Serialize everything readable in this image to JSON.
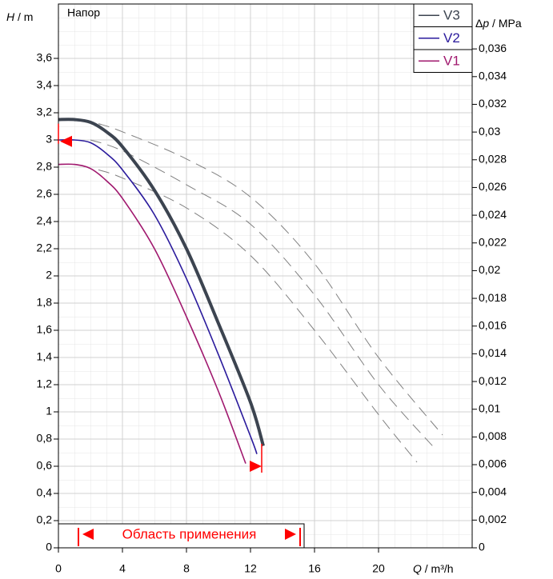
{
  "chart_data": {
    "type": "line",
    "title": "Напор",
    "x_label": {
      "symbol": "Q",
      "unit": " / m³/h"
    },
    "y_label": {
      "symbol": "H",
      "unit": " / m"
    },
    "y2_label": {
      "prefix": "Δ",
      "symbol": "p",
      "unit": " / MPa"
    },
    "xlim": [
      0,
      25.85
    ],
    "xticks": [
      0,
      4,
      8,
      12,
      16,
      20
    ],
    "ylim": [
      0,
      4
    ],
    "yticks": [
      0,
      {
        "value": 0.2,
        "label": "0,2"
      },
      {
        "value": 0.4,
        "label": "0,4"
      },
      {
        "value": 0.6,
        "label": "0,6"
      },
      {
        "value": 0.8,
        "label": "0,8"
      },
      1,
      {
        "value": 1.2,
        "label": "1,2"
      },
      {
        "value": 1.4,
        "label": "1,4"
      },
      {
        "value": 1.6,
        "label": "1,6"
      },
      {
        "value": 1.8,
        "label": "1,8"
      },
      2,
      {
        "value": 2.2,
        "label": "2,2"
      },
      {
        "value": 2.4,
        "label": "2,4"
      },
      {
        "value": 2.6,
        "label": "2,6"
      },
      {
        "value": 2.8,
        "label": "2,8"
      },
      3,
      {
        "value": 3.2,
        "label": "3,2"
      },
      {
        "value": 3.4,
        "label": "3,4"
      },
      {
        "value": 3.6,
        "label": "3,6"
      }
    ],
    "y2lim": [
      0,
      0.03924
    ],
    "y2ticks": [
      0,
      {
        "value": 0.002,
        "label": "0,002"
      },
      {
        "value": 0.004,
        "label": "0,004"
      },
      {
        "value": 0.006,
        "label": "0,006"
      },
      {
        "value": 0.008,
        "label": "0,008"
      },
      {
        "value": 0.01,
        "label": "0,01"
      },
      {
        "value": 0.012,
        "label": "0,012"
      },
      {
        "value": 0.014,
        "label": "0,014"
      },
      {
        "value": 0.016,
        "label": "0,016"
      },
      {
        "value": 0.018,
        "label": "0,018"
      },
      {
        "value": 0.02,
        "label": "0,02"
      },
      {
        "value": 0.022,
        "label": "0,022"
      },
      {
        "value": 0.024,
        "label": "0,024"
      },
      {
        "value": 0.026,
        "label": "0,026"
      },
      {
        "value": 0.028,
        "label": "0,028"
      },
      {
        "value": 0.03,
        "label": "0,03"
      },
      {
        "value": 0.032,
        "label": "0,032"
      },
      {
        "value": 0.034,
        "label": "0,034"
      },
      {
        "value": 0.036,
        "label": "0,036"
      }
    ],
    "grid": true,
    "series": [
      {
        "name": "V3",
        "color": "#3c4450",
        "width": 4,
        "x": [
          0,
          1,
          2,
          3,
          4,
          6,
          8,
          10,
          12,
          12.8
        ],
        "values": [
          3.15,
          3.15,
          3.13,
          3.06,
          2.95,
          2.63,
          2.2,
          1.65,
          1.07,
          0.75
        ]
      },
      {
        "name": "V2",
        "color": "#2a1a9c",
        "width": 1.6,
        "x": [
          0,
          1,
          2,
          3,
          4,
          6,
          8,
          10,
          12,
          12.4
        ],
        "values": [
          3.0,
          3.0,
          2.98,
          2.9,
          2.78,
          2.45,
          1.98,
          1.42,
          0.82,
          0.69
        ]
      },
      {
        "name": "V1",
        "color": "#a0186e",
        "width": 1.6,
        "x": [
          0,
          1,
          2,
          3,
          4,
          6,
          8,
          10,
          11.7
        ],
        "values": [
          2.82,
          2.82,
          2.79,
          2.7,
          2.57,
          2.2,
          1.7,
          1.15,
          0.62
        ]
      }
    ],
    "reference_curves": [
      {
        "color": "#808080",
        "x": [
          2.5,
          4,
          8,
          12,
          16,
          20,
          24
        ],
        "values": [
          3.12,
          3.06,
          2.86,
          2.58,
          2.09,
          1.4,
          0.83
        ]
      },
      {
        "color": "#808080",
        "x": [
          2,
          4,
          8,
          12,
          16,
          20,
          23.6
        ],
        "values": [
          3.0,
          2.92,
          2.67,
          2.38,
          1.86,
          1.2,
          0.72
        ]
      },
      {
        "color": "#808080",
        "x": [
          2.5,
          4,
          8,
          12,
          16,
          20,
          22.4
        ],
        "values": [
          2.78,
          2.72,
          2.5,
          2.15,
          1.6,
          0.98,
          0.63
        ]
      }
    ],
    "range": {
      "label": "Область применения",
      "from": 1.25,
      "to": 15.1
    },
    "limit_markers": [
      {
        "x": 0,
        "y": 2.99
      },
      {
        "x": 12.7,
        "y": 0.6
      }
    ]
  }
}
